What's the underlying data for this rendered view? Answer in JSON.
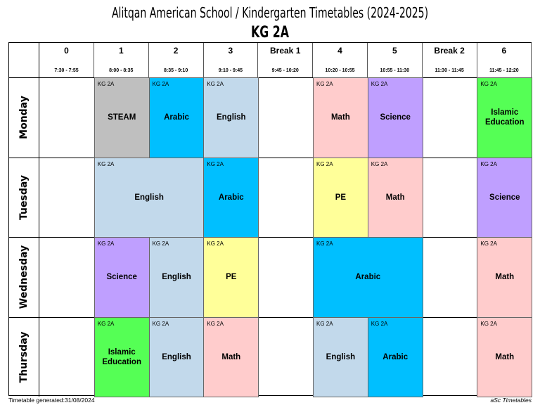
{
  "header": {
    "title": "Alitqan American School / Kindergarten Timetables (2024-2025)",
    "class_name": "KG 2A"
  },
  "periods": [
    {
      "label": "0",
      "time": "7:30 - 7:55"
    },
    {
      "label": "1",
      "time": "8:00 - 8:35"
    },
    {
      "label": "2",
      "time": "8:35 - 9:10"
    },
    {
      "label": "3",
      "time": "9:10 - 9:45"
    },
    {
      "label": "Break 1",
      "time": "9:45 - 10:20"
    },
    {
      "label": "4",
      "time": "10:20 - 10:55"
    },
    {
      "label": "5",
      "time": "10:55 - 11:30"
    },
    {
      "label": "Break 2",
      "time": "11:30 - 11:45"
    },
    {
      "label": "6",
      "time": "11:45 - 12:20"
    }
  ],
  "days": [
    "Monday",
    "Tuesday",
    "Wednesday",
    "Thursday"
  ],
  "colors": {
    "STEAM": "#bfbfbf",
    "Arabic": "#00bfff",
    "English": "#c2d9eb",
    "Math": "#ffcccc",
    "Science": "#bf9fff",
    "Islamic Education": "#55ff55",
    "PE": "#ffff99"
  },
  "lessons": [
    {
      "day": 0,
      "periods": [
        "1"
      ],
      "class": "KG 2A",
      "subject": "STEAM"
    },
    {
      "day": 0,
      "periods": [
        "2"
      ],
      "class": "KG 2A",
      "subject": "Arabic"
    },
    {
      "day": 0,
      "periods": [
        "3"
      ],
      "class": "KG 2A",
      "subject": "English"
    },
    {
      "day": 0,
      "periods": [
        "4"
      ],
      "class": "KG 2A",
      "subject": "Math"
    },
    {
      "day": 0,
      "periods": [
        "5"
      ],
      "class": "KG 2A",
      "subject": "Science"
    },
    {
      "day": 0,
      "periods": [
        "6"
      ],
      "class": "KG 2A",
      "subject": "Islamic Education"
    },
    {
      "day": 1,
      "periods": [
        "1",
        "2"
      ],
      "class": "KG 2A",
      "subject": "English"
    },
    {
      "day": 1,
      "periods": [
        "3"
      ],
      "class": "KG 2A",
      "subject": "Arabic"
    },
    {
      "day": 1,
      "periods": [
        "4"
      ],
      "class": "KG 2A",
      "subject": "PE"
    },
    {
      "day": 1,
      "periods": [
        "5"
      ],
      "class": "KG 2A",
      "subject": "Math"
    },
    {
      "day": 1,
      "periods": [
        "6"
      ],
      "class": "KG 2A",
      "subject": "Science"
    },
    {
      "day": 2,
      "periods": [
        "1"
      ],
      "class": "KG 2A",
      "subject": "Science"
    },
    {
      "day": 2,
      "periods": [
        "2"
      ],
      "class": "KG 2A",
      "subject": "English"
    },
    {
      "day": 2,
      "periods": [
        "3"
      ],
      "class": "KG 2A",
      "subject": "PE"
    },
    {
      "day": 2,
      "periods": [
        "4",
        "5"
      ],
      "class": "KG 2A",
      "subject": "Arabic"
    },
    {
      "day": 2,
      "periods": [
        "6"
      ],
      "class": "KG 2A",
      "subject": "Math"
    },
    {
      "day": 3,
      "periods": [
        "1"
      ],
      "class": "KG 2A",
      "subject": "Islamic Education"
    },
    {
      "day": 3,
      "periods": [
        "2"
      ],
      "class": "KG 2A",
      "subject": "English"
    },
    {
      "day": 3,
      "periods": [
        "3"
      ],
      "class": "KG 2A",
      "subject": "Math"
    },
    {
      "day": 3,
      "periods": [
        "4"
      ],
      "class": "KG 2A",
      "subject": "English"
    },
    {
      "day": 3,
      "periods": [
        "5"
      ],
      "class": "KG 2A",
      "subject": "Arabic"
    },
    {
      "day": 3,
      "periods": [
        "6"
      ],
      "class": "KG 2A",
      "subject": "Math"
    }
  ],
  "footer": {
    "generated": "Timetable generated:31/08/2024",
    "brand": "aSc Timetables"
  }
}
